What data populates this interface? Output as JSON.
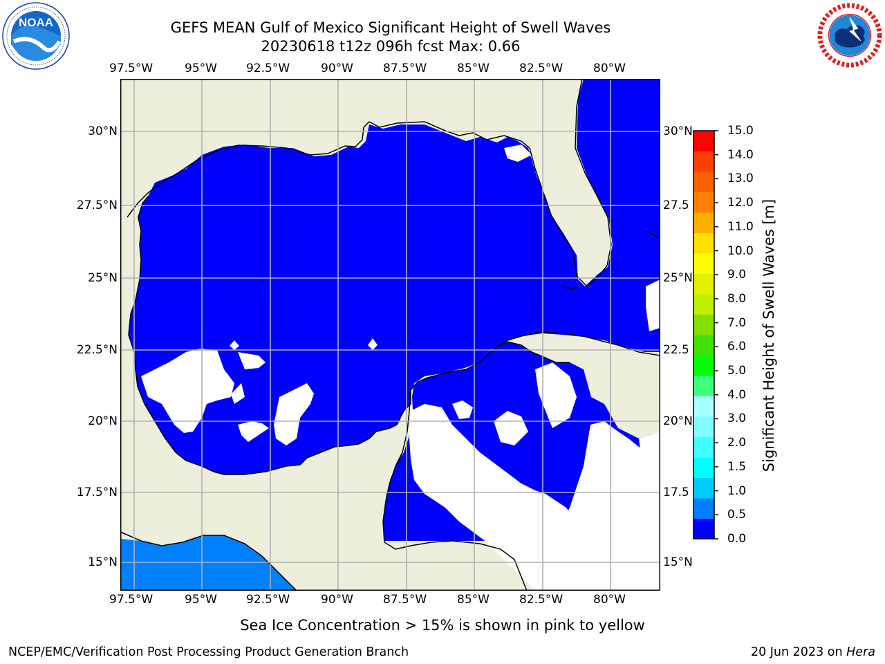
{
  "header": {
    "title_line1": "GEFS MEAN Gulf of Mexico Significant Height of Swell Waves",
    "title_line2": "20230618 t12z 096h fcst   Max: 0.66"
  },
  "logos": {
    "left": {
      "icon": "noaa-logo-icon",
      "text": "NOAA",
      "ring_text": "NATIONAL OCEANIC AND ATMOSPHERIC ADMINISTRATION · U.S. DEPARTMENT OF COMMERCE"
    },
    "right": {
      "icon": "nws-logo-icon",
      "ring_text": "NATIONAL WEATHER SERVICE"
    }
  },
  "map": {
    "lon_labels": [
      "97.5°W",
      "95°W",
      "92.5°W",
      "90°W",
      "87.5°W",
      "85°W",
      "82.5°W",
      "80°W"
    ],
    "lat_labels_left": [
      "30°N",
      "27.5°N",
      "25°N",
      "22.5°N",
      "20°N",
      "17.5°N",
      "15°N"
    ],
    "lat_labels_right": [
      "30°N",
      "27.5",
      "25°N",
      "22.5",
      "20°N",
      "17.5",
      "15°N"
    ],
    "colors": {
      "land": "#eeeedd",
      "ocean_low": "#0000ff",
      "ocean_05": "#0080ff",
      "missing": "#ffffff",
      "grid": "#b0b0b0",
      "coast": "#000000"
    }
  },
  "colorbar": {
    "label": "Significant Height of Swell Waves [m]",
    "ticks": [
      "0.0",
      "0.5",
      "1.0",
      "1.5",
      "2.0",
      "3.0",
      "4.0",
      "5.0",
      "6.0",
      "7.0",
      "8.0",
      "9.0",
      "10.0",
      "11.0",
      "12.0",
      "13.0",
      "14.0",
      "15.0"
    ],
    "colors": [
      "#0000ff",
      "#0080ff",
      "#00ccff",
      "#00ffff",
      "#40ffff",
      "#80ffff",
      "#a8ffff",
      "#40ff80",
      "#00ff00",
      "#40e000",
      "#80e000",
      "#c0f000",
      "#e0f000",
      "#ffff00",
      "#ffe000",
      "#ffb000",
      "#ff8000",
      "#ff6000",
      "#ff4000",
      "#ff0000"
    ]
  },
  "caption": "Sea Ice Concentration > 15% is shown in pink to yellow",
  "footer": {
    "left": "NCEP/EMC/Verification Post Processing Product Generation Branch",
    "right_prefix": "20 Jun 2023 on ",
    "right_italic": "Hera"
  }
}
